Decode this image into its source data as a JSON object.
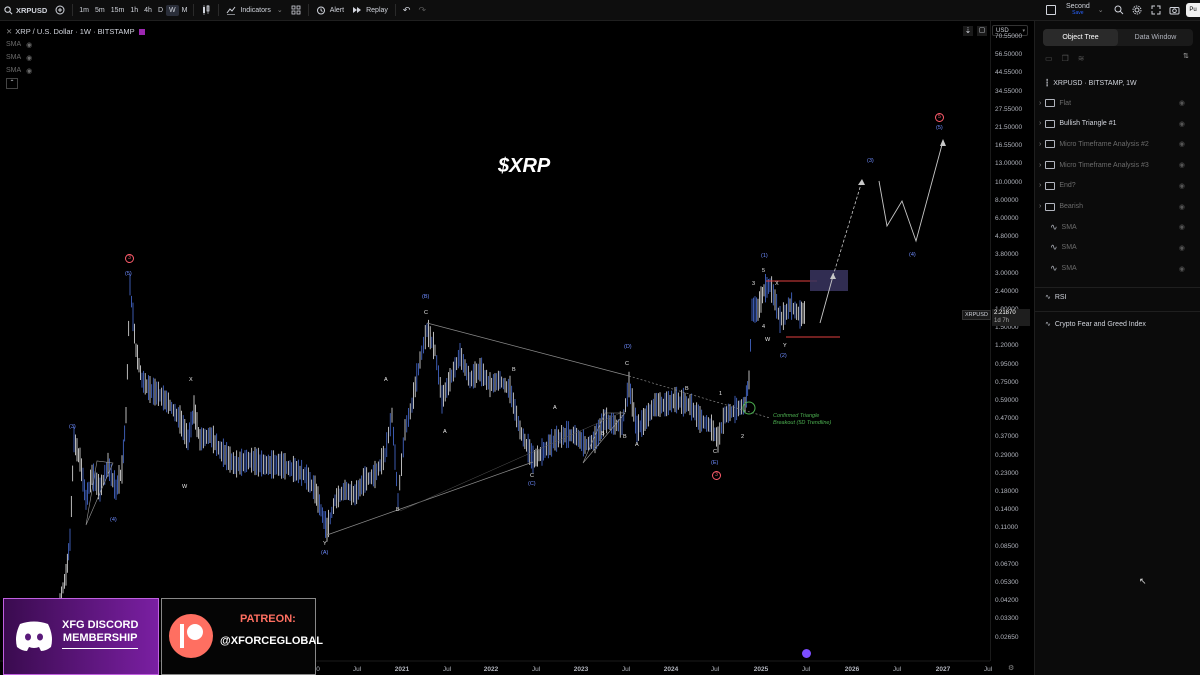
{
  "toolbar": {
    "symbol": "XRPUSD",
    "timeframes": [
      "1m",
      "5m",
      "15m",
      "1h",
      "4h",
      "D",
      "W",
      "M"
    ],
    "active_timeframe": "W",
    "indicators_label": "Indicators",
    "alert_label": "Alert",
    "replay_label": "Replay",
    "user_label": "Second",
    "user_sub": "Save",
    "publish_label": "Pu"
  },
  "chart": {
    "title": "XRP / U.S. Dollar · 1W · BITSTAMP",
    "legend_items": [
      "SMA",
      "SMA",
      "SMA"
    ],
    "watermark": "$XRP",
    "currency": "USD",
    "last_price": "2.21870",
    "countdown": "1d 7h",
    "symbol_tag": "XRPUSD",
    "price_ticks": [
      "70.55000",
      "56.50000",
      "44.55000",
      "34.55000",
      "27.55000",
      "21.50000",
      "16.55000",
      "13.00000",
      "10.00000",
      "8.00000",
      "6.00000",
      "4.80000",
      "3.80000",
      "3.00000",
      "2.40000",
      "1.90000",
      "1.50000",
      "1.20000",
      "0.95000",
      "0.75000",
      "0.59000",
      "0.47000",
      "0.37000",
      "0.29000",
      "0.23000",
      "0.18000",
      "0.14000",
      "0.11000",
      "0.08500",
      "0.06700",
      "0.05300",
      "0.04200",
      "0.03300",
      "0.02650"
    ],
    "time_ticks": [
      "0",
      "Jul",
      "2021",
      "Jul",
      "2022",
      "Jul",
      "2023",
      "Jul",
      "2024",
      "Jul",
      "2025",
      "Jul",
      "2026",
      "Jul",
      "2027",
      "Jul"
    ],
    "annotation": "Confirmed Triangle Breakout (5D Trendline)",
    "wave_labels": {
      "w1": "(1)",
      "w2": "(2)",
      "w3": "(3)",
      "w4": "(4)",
      "w5": "(5)",
      "wA": "(A)",
      "wB": "(B)",
      "wC": "(C)",
      "wD": "(D)",
      "wE": "(E)",
      "A": "A",
      "B": "B",
      "C": "C",
      "D": "D",
      "E": "E",
      "W": "W",
      "X": "X",
      "Y": "Y",
      "n1": "1",
      "n2": "2",
      "n3": "3",
      "n4": "4",
      "n5": "5",
      "circ3": "3",
      "circ5": "5"
    }
  },
  "object_tree": {
    "tab_object_tree": "Object Tree",
    "tab_data_window": "Data Window",
    "main_symbol": "XRPUSD · BITSTAMP, 1W",
    "items": [
      {
        "label": "Flat",
        "type": "folder",
        "dim": true
      },
      {
        "label": "Bullish Triangle #1",
        "type": "folder",
        "dim": false
      },
      {
        "label": "Micro Timeframe Analysis #2",
        "type": "folder",
        "dim": true
      },
      {
        "label": "Micro Timeframe Analysis #3",
        "type": "folder",
        "dim": true
      },
      {
        "label": "End?",
        "type": "folder",
        "dim": true
      },
      {
        "label": "Bearish",
        "type": "folder",
        "dim": true
      },
      {
        "label": "SMA",
        "type": "indicator",
        "dim": true
      },
      {
        "label": "SMA",
        "type": "indicator",
        "dim": true
      },
      {
        "label": "SMA",
        "type": "indicator",
        "dim": true
      }
    ],
    "panes": [
      "RSI",
      "Crypto Fear and Greed Index"
    ]
  },
  "promo": {
    "discord_line1": "XFG DISCORD",
    "discord_line2": "MEMBERSHIP",
    "patreon_line1": "PATREON:",
    "patreon_line2": "@XFORCEGLOBAL"
  },
  "colors": {
    "candle": "#4a6fd8",
    "label_blue": "#6e8cff",
    "circle_red": "#ff5c6c",
    "breakout_green": "#4caf50",
    "box_purple": "#3a3560",
    "discord_purple": "#7a1fa2",
    "patreon_coral": "#ff6f61"
  }
}
